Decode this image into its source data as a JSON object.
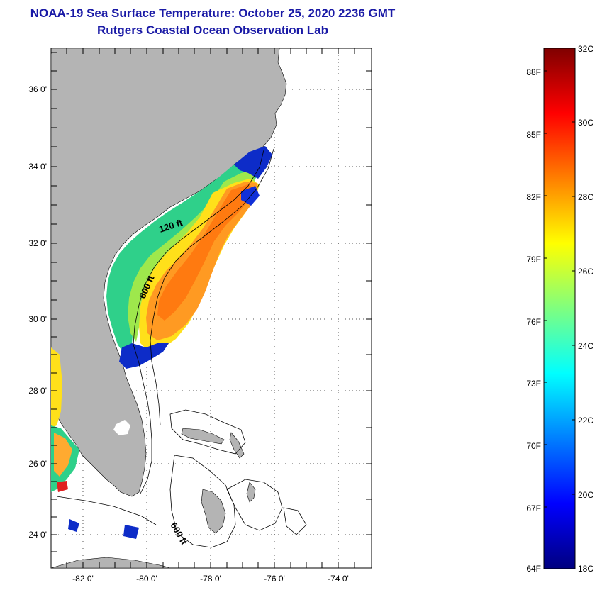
{
  "title": {
    "line1": "NOAA-19 Sea Surface Temperature:  October 25, 2020 2236 GMT",
    "line2": "Rutgers Coastal Ocean Observation Lab"
  },
  "map": {
    "lat_labels": [
      "36 0'",
      "34 0'",
      "32 0'",
      "30 0'",
      "28 0'",
      "26 0'",
      "24 0'"
    ],
    "lon_labels": [
      "-82 0'",
      "-80 0'",
      "-78 0'",
      "-76 0'",
      "-74 0'"
    ],
    "contour_labels": [
      "120 ft",
      "600 ft",
      "600 ft"
    ],
    "colors": {
      "land": "#b4b4b4",
      "grid": "#555555",
      "title": "#1a1aa6"
    }
  },
  "colorbar": {
    "celsius_labels": [
      "32C",
      "30C",
      "28C",
      "26C",
      "24C",
      "22C",
      "20C",
      "18C"
    ],
    "fahrenheit_labels": [
      "88F",
      "85F",
      "82F",
      "79F",
      "76F",
      "73F",
      "70F",
      "67F",
      "64F"
    ],
    "stops": [
      "#00007f",
      "#0000ff",
      "#007fff",
      "#00ffff",
      "#7fff7f",
      "#ffff00",
      "#ff7f00",
      "#ff0000",
      "#7f0000"
    ]
  }
}
